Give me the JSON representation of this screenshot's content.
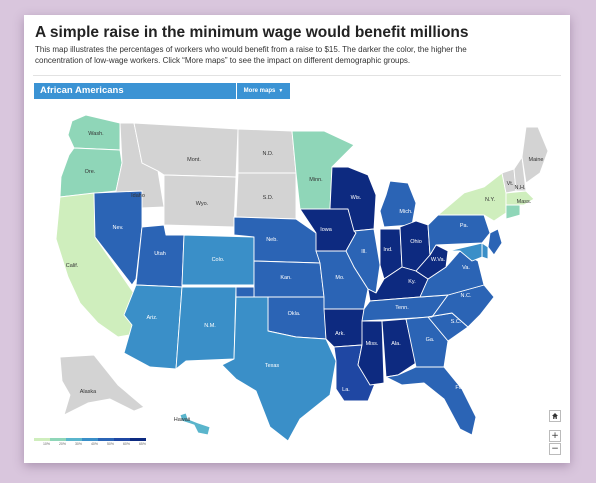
{
  "headline": "A simple raise in the minimum wage would benefit millions",
  "dek": "This map illustrates the percentages of workers who would benefit from a raise to $15. The darker the color, the higher the concentration of low-wage workers. Click “More maps” to see the impact on different demographic groups.",
  "group_label": "African Americans",
  "more_maps_label": "More maps",
  "more_maps_icon": "caret-down-icon",
  "legend": {
    "ticks": [
      "10%",
      "20%",
      "30%",
      "40%",
      "50%",
      "60%",
      "65%"
    ],
    "colors": [
      "#cfeebd",
      "#8fd6b8",
      "#5ab5cc",
      "#3a8fc8",
      "#2b64b5",
      "#1f47a3",
      "#0d2a80"
    ]
  },
  "zoom": {
    "home_icon": "home-icon",
    "in_label": "+",
    "out_label": "−"
  },
  "state_colors": {
    "gray": "#d3d3d3",
    "pale_green": "#cfeebd",
    "mint": "#8fd6b8",
    "light_blue": "#5ab5cc",
    "blue": "#3a8fc8",
    "mid_blue": "#2b64b5",
    "dark_blue": "#1f47a3",
    "navy": "#0d2a80"
  },
  "states": [
    {
      "id": "WA",
      "label": "Wash.",
      "color": "mint"
    },
    {
      "id": "OR",
      "label": "Ore.",
      "color": "mint"
    },
    {
      "id": "CA",
      "label": "Calif.",
      "color": "pale_green"
    },
    {
      "id": "ID",
      "label": "Idaho",
      "color": "gray"
    },
    {
      "id": "NV",
      "label": "Nev.",
      "color": "mid_blue"
    },
    {
      "id": "MT",
      "label": "Mont.",
      "color": "gray"
    },
    {
      "id": "WY",
      "label": "Wyo.",
      "color": "gray"
    },
    {
      "id": "UT",
      "label": "Utah",
      "color": "mid_blue"
    },
    {
      "id": "AZ",
      "label": "Ariz.",
      "color": "blue"
    },
    {
      "id": "CO",
      "label": "Colo.",
      "color": "blue"
    },
    {
      "id": "NM",
      "label": "N.M.",
      "color": "blue"
    },
    {
      "id": "ND",
      "label": "N.D.",
      "color": "gray"
    },
    {
      "id": "SD",
      "label": "S.D.",
      "color": "gray"
    },
    {
      "id": "NE",
      "label": "Neb.",
      "color": "mid_blue"
    },
    {
      "id": "KS",
      "label": "Kan.",
      "color": "mid_blue"
    },
    {
      "id": "OK",
      "label": "Okla.",
      "color": "mid_blue"
    },
    {
      "id": "TX",
      "label": "Texas",
      "color": "blue"
    },
    {
      "id": "MN",
      "label": "Minn.",
      "color": "mint"
    },
    {
      "id": "IA",
      "label": "Iowa",
      "color": "navy"
    },
    {
      "id": "MO",
      "label": "Mo.",
      "color": "mid_blue"
    },
    {
      "id": "AR",
      "label": "Ark.",
      "color": "navy"
    },
    {
      "id": "LA",
      "label": "La.",
      "color": "dark_blue"
    },
    {
      "id": "WI",
      "label": "Wis.",
      "color": "navy"
    },
    {
      "id": "IL",
      "label": "Ill.",
      "color": "mid_blue"
    },
    {
      "id": "MI",
      "label": "Mich.",
      "color": "mid_blue"
    },
    {
      "id": "IN",
      "label": "Ind.",
      "color": "navy"
    },
    {
      "id": "OH",
      "label": "Ohio",
      "color": "navy"
    },
    {
      "id": "KY",
      "label": "Ky.",
      "color": "navy"
    },
    {
      "id": "TN",
      "label": "Tenn.",
      "color": "mid_blue"
    },
    {
      "id": "MS",
      "label": "Miss.",
      "color": "navy"
    },
    {
      "id": "AL",
      "label": "Ala.",
      "color": "navy"
    },
    {
      "id": "GA",
      "label": "Ga.",
      "color": "mid_blue"
    },
    {
      "id": "FL",
      "label": "Fla.",
      "color": "mid_blue"
    },
    {
      "id": "SC",
      "label": "S.C.",
      "color": "mid_blue"
    },
    {
      "id": "NC",
      "label": "N.C.",
      "color": "mid_blue"
    },
    {
      "id": "VA",
      "label": "Va.",
      "color": "mid_blue"
    },
    {
      "id": "WV",
      "label": "W.Va.",
      "color": "navy"
    },
    {
      "id": "PA",
      "label": "Pa.",
      "color": "mid_blue"
    },
    {
      "id": "NY",
      "label": "N.Y.",
      "color": "pale_green"
    },
    {
      "id": "VT",
      "label": "Vt.",
      "color": "gray"
    },
    {
      "id": "NH",
      "label": "N.H.",
      "color": "gray"
    },
    {
      "id": "ME",
      "label": "Maine",
      "color": "gray"
    },
    {
      "id": "MA",
      "label": "Mass.",
      "color": "pale_green"
    },
    {
      "id": "CT",
      "label": "",
      "color": "mint"
    },
    {
      "id": "NJ",
      "label": "",
      "color": "mid_blue"
    },
    {
      "id": "DE",
      "label": "",
      "color": "blue"
    },
    {
      "id": "MD",
      "label": "",
      "color": "blue"
    },
    {
      "id": "AK",
      "label": "Alaska",
      "color": "gray"
    },
    {
      "id": "HI",
      "label": "Hawaii",
      "color": "light_blue"
    }
  ]
}
